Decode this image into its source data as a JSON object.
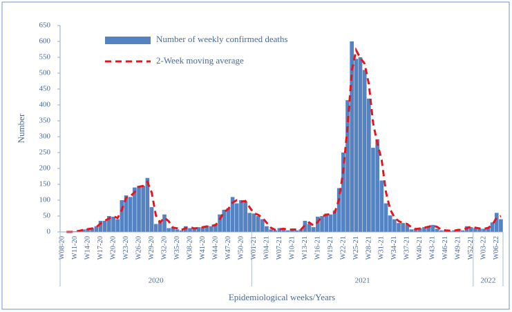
{
  "chart_data": {
    "type": "bar",
    "y_label": "Number",
    "x_label": "Epidemiological weeks/Years",
    "categories": [
      "W08-20",
      null,
      null,
      "W11-20",
      null,
      null,
      "W14-20",
      null,
      null,
      "W17-20",
      null,
      null,
      "W20-20",
      null,
      null,
      "W23-20",
      null,
      null,
      "W26-20",
      null,
      null,
      "W29-20",
      null,
      null,
      "W32-20",
      null,
      null,
      "W35-20",
      null,
      null,
      "W38-20",
      null,
      null,
      "W41-20",
      null,
      null,
      "W44-20",
      null,
      null,
      "W47-20",
      null,
      null,
      "W50-20",
      null,
      null,
      "W01-21",
      null,
      null,
      "W04-21",
      null,
      null,
      "W07-21",
      null,
      null,
      "W10-21",
      null,
      null,
      "W13-21",
      null,
      null,
      "W16-21",
      null,
      null,
      "W19-21",
      null,
      null,
      "W22-21",
      null,
      null,
      "W25-21",
      null,
      null,
      "W28-21",
      null,
      null,
      "W31-21",
      null,
      null,
      "W34-21",
      null,
      null,
      "W37-21",
      null,
      null,
      "W40-21",
      null,
      null,
      "W43-21",
      null,
      null,
      "W46-21",
      null,
      null,
      "W49-21",
      null,
      null,
      "W52-21",
      null,
      null,
      "W03-22",
      null,
      null,
      "W06-22",
      null
    ],
    "groups": [
      {
        "label": "2020",
        "start": 0,
        "end": 44
      },
      {
        "label": "2021",
        "start": 45,
        "end": 96
      },
      {
        "label": "2022",
        "start": 97,
        "end": 103
      }
    ],
    "series": [
      {
        "name": "Number of weekly confirmed deaths",
        "type": "bar",
        "color": "#5582c0",
        "values": [
          0,
          0,
          0,
          2,
          5,
          8,
          10,
          12,
          18,
          35,
          35,
          50,
          48,
          40,
          100,
          115,
          110,
          140,
          145,
          145,
          170,
          78,
          25,
          35,
          55,
          12,
          15,
          8,
          5,
          18,
          12,
          10,
          15,
          15,
          20,
          18,
          25,
          55,
          70,
          75,
          110,
          90,
          100,
          95,
          60,
          58,
          50,
          40,
          18,
          8,
          5,
          12,
          8,
          5,
          10,
          5,
          8,
          35,
          25,
          15,
          48,
          50,
          58,
          55,
          68,
          138,
          250,
          415,
          600,
          545,
          550,
          510,
          420,
          265,
          292,
          162,
          90,
          52,
          40,
          28,
          28,
          22,
          8,
          10,
          12,
          15,
          18,
          22,
          10,
          5,
          5,
          3,
          5,
          8,
          5,
          18,
          15,
          12,
          10,
          10,
          15,
          30,
          60,
          40
        ]
      },
      {
        "name": "2-Week moving average",
        "type": "line",
        "color": "#e8141c",
        "dashed": true,
        "values": [
          null,
          0,
          0,
          1,
          3.5,
          6.5,
          9,
          11,
          15,
          26.5,
          35,
          42.5,
          49,
          44,
          70,
          107.5,
          112.5,
          125,
          142.5,
          145,
          157.5,
          124,
          51.5,
          30,
          45,
          33.5,
          13.5,
          11.5,
          6.5,
          11.5,
          15,
          11,
          12.5,
          15,
          17.5,
          19,
          21.5,
          40,
          62.5,
          72.5,
          92.5,
          100,
          95,
          97.5,
          77.5,
          59,
          54,
          45,
          29,
          13,
          6.5,
          8.5,
          10,
          6.5,
          7.5,
          7.5,
          6.5,
          21.5,
          30,
          20,
          31.5,
          49,
          54,
          56.5,
          61.5,
          103,
          194,
          332.5,
          507.5,
          572.5,
          547.5,
          530,
          465,
          342.5,
          278.5,
          227,
          126,
          71,
          46,
          34,
          28,
          25,
          15,
          9,
          11,
          13.5,
          16.5,
          20,
          16,
          7.5,
          5,
          4,
          4,
          6.5,
          6.5,
          11.5,
          16.5,
          13.5,
          11,
          10,
          12.5,
          22.5,
          45,
          50
        ]
      }
    ],
    "ylim": [
      0,
      650
    ],
    "yticks": [
      0,
      50,
      100,
      150,
      200,
      250,
      300,
      350,
      400,
      450,
      500,
      550,
      600,
      650
    ],
    "legend": "top-left"
  }
}
